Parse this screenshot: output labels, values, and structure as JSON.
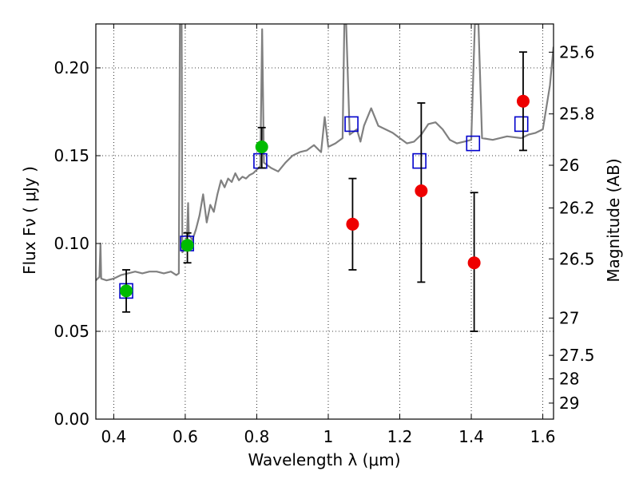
{
  "chart_data": {
    "type": "scatter",
    "xlabel": "Wavelength  λ (μm)",
    "ylabel": "Flux  Fν  ( μJy )",
    "y2label": "Magnitude (AB)",
    "xlim": [
      0.35,
      1.63
    ],
    "ylim": [
      0.0,
      0.225
    ],
    "grid": true,
    "x_ticks": [
      {
        "value": 0.4,
        "label": "0.4"
      },
      {
        "value": 0.6,
        "label": "0.6"
      },
      {
        "value": 0.8,
        "label": "0.8"
      },
      {
        "value": 1.0,
        "label": "1"
      },
      {
        "value": 1.2,
        "label": "1.2"
      },
      {
        "value": 1.4,
        "label": "1.4"
      },
      {
        "value": 1.6,
        "label": "1.6"
      }
    ],
    "y_ticks": [
      {
        "value": 0.0,
        "label": "0.00"
      },
      {
        "value": 0.05,
        "label": "0.05"
      },
      {
        "value": 0.1,
        "label": "0.10"
      },
      {
        "value": 0.15,
        "label": "0.15"
      },
      {
        "value": 0.2,
        "label": "0.20"
      }
    ],
    "y2_ticks": [
      {
        "mag": 25.6,
        "label": "25.6"
      },
      {
        "mag": 25.8,
        "label": "25.8"
      },
      {
        "mag": 26.0,
        "label": "26"
      },
      {
        "mag": 26.2,
        "label": "26.2"
      },
      {
        "mag": 26.5,
        "label": "26.5"
      },
      {
        "mag": 27.0,
        "label": "27"
      },
      {
        "mag": 27.5,
        "label": "27.5"
      },
      {
        "mag": 28.0,
        "label": "28"
      },
      {
        "mag": 29.0,
        "label": "29"
      }
    ],
    "series": [
      {
        "kind": "line",
        "color": "#808080",
        "points": [
          [
            0.35,
            0.079
          ],
          [
            0.36,
            0.081
          ],
          [
            0.363,
            0.1
          ],
          [
            0.365,
            0.08
          ],
          [
            0.38,
            0.079
          ],
          [
            0.4,
            0.08
          ],
          [
            0.42,
            0.082
          ],
          [
            0.44,
            0.083
          ],
          [
            0.46,
            0.084
          ],
          [
            0.48,
            0.083
          ],
          [
            0.5,
            0.084
          ],
          [
            0.52,
            0.084
          ],
          [
            0.54,
            0.083
          ],
          [
            0.56,
            0.084
          ],
          [
            0.575,
            0.082
          ],
          [
            0.582,
            0.083
          ],
          [
            0.585,
            0.225
          ],
          [
            0.59,
            0.225
          ],
          [
            0.592,
            0.095
          ],
          [
            0.6,
            0.097
          ],
          [
            0.605,
            0.105
          ],
          [
            0.608,
            0.123
          ],
          [
            0.61,
            0.105
          ],
          [
            0.62,
            0.102
          ],
          [
            0.63,
            0.108
          ],
          [
            0.64,
            0.116
          ],
          [
            0.65,
            0.128
          ],
          [
            0.66,
            0.112
          ],
          [
            0.67,
            0.122
          ],
          [
            0.68,
            0.118
          ],
          [
            0.69,
            0.128
          ],
          [
            0.7,
            0.136
          ],
          [
            0.71,
            0.132
          ],
          [
            0.72,
            0.137
          ],
          [
            0.73,
            0.135
          ],
          [
            0.74,
            0.14
          ],
          [
            0.75,
            0.136
          ],
          [
            0.76,
            0.138
          ],
          [
            0.77,
            0.137
          ],
          [
            0.78,
            0.139
          ],
          [
            0.79,
            0.14
          ],
          [
            0.8,
            0.142
          ],
          [
            0.81,
            0.144
          ],
          [
            0.815,
            0.222
          ],
          [
            0.82,
            0.146
          ],
          [
            0.84,
            0.143
          ],
          [
            0.86,
            0.141
          ],
          [
            0.88,
            0.146
          ],
          [
            0.9,
            0.15
          ],
          [
            0.92,
            0.152
          ],
          [
            0.94,
            0.153
          ],
          [
            0.96,
            0.156
          ],
          [
            0.98,
            0.152
          ],
          [
            0.99,
            0.172
          ],
          [
            1.0,
            0.155
          ],
          [
            1.02,
            0.157
          ],
          [
            1.04,
            0.16
          ],
          [
            1.045,
            0.225
          ],
          [
            1.05,
            0.225
          ],
          [
            1.06,
            0.162
          ],
          [
            1.08,
            0.165
          ],
          [
            1.09,
            0.158
          ],
          [
            1.1,
            0.167
          ],
          [
            1.12,
            0.177
          ],
          [
            1.14,
            0.167
          ],
          [
            1.16,
            0.165
          ],
          [
            1.18,
            0.163
          ],
          [
            1.2,
            0.16
          ],
          [
            1.22,
            0.157
          ],
          [
            1.24,
            0.158
          ],
          [
            1.26,
            0.162
          ],
          [
            1.28,
            0.168
          ],
          [
            1.3,
            0.169
          ],
          [
            1.32,
            0.165
          ],
          [
            1.34,
            0.159
          ],
          [
            1.36,
            0.157
          ],
          [
            1.38,
            0.158
          ],
          [
            1.4,
            0.159
          ],
          [
            1.41,
            0.225
          ],
          [
            1.42,
            0.225
          ],
          [
            1.43,
            0.16
          ],
          [
            1.46,
            0.159
          ],
          [
            1.5,
            0.161
          ],
          [
            1.54,
            0.16
          ],
          [
            1.56,
            0.162
          ],
          [
            1.58,
            0.163
          ],
          [
            1.6,
            0.165
          ],
          [
            1.62,
            0.19
          ],
          [
            1.63,
            0.212
          ]
        ]
      },
      {
        "kind": "markers",
        "marker": "square",
        "color": "#0000cc",
        "points": [
          [
            0.435,
            0.073
          ],
          [
            0.605,
            0.1
          ],
          [
            0.81,
            0.147
          ],
          [
            1.065,
            0.168
          ],
          [
            1.255,
            0.147
          ],
          [
            1.405,
            0.157
          ],
          [
            1.54,
            0.168
          ]
        ]
      },
      {
        "kind": "markers",
        "marker": "circle",
        "color": "#00bb00",
        "points": [
          {
            "x": 0.435,
            "y": 0.073,
            "err": [
              0.061,
              0.085
            ]
          },
          {
            "x": 0.606,
            "y": 0.099,
            "err": [
              0.089,
              0.106
            ]
          },
          {
            "x": 0.814,
            "y": 0.155,
            "err": [
              0.143,
              0.166
            ]
          }
        ]
      },
      {
        "kind": "markers",
        "marker": "circle",
        "color": "#ee0000",
        "points": [
          {
            "x": 1.068,
            "y": 0.111,
            "err": [
              0.085,
              0.137
            ]
          },
          {
            "x": 1.26,
            "y": 0.13,
            "err": [
              0.078,
              0.18
            ]
          },
          {
            "x": 1.408,
            "y": 0.089,
            "err": [
              0.05,
              0.129
            ]
          },
          {
            "x": 1.545,
            "y": 0.181,
            "err": [
              0.153,
              0.209
            ]
          }
        ]
      }
    ]
  }
}
